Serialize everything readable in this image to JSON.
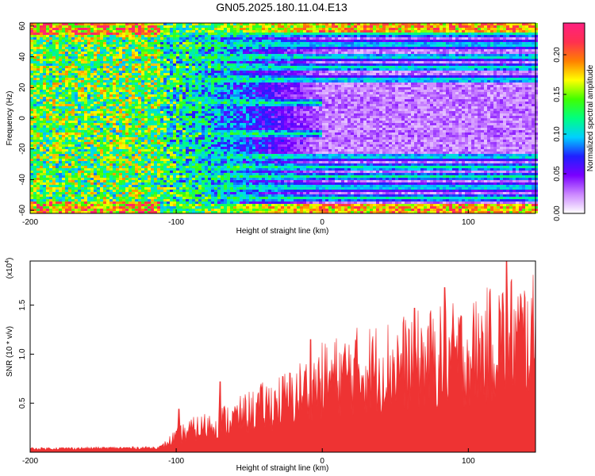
{
  "title": "GN05.2025.180.11.04.E13",
  "chart_data": [
    {
      "type": "heatmap",
      "xlabel": "Height of straight line (km)",
      "ylabel": "Frequency (Hz)",
      "xlim": [
        -200,
        146
      ],
      "ylim": [
        -62,
        62
      ],
      "x_ticks": [
        "-200",
        "-100",
        "0",
        "100"
      ],
      "x_tick_values": [
        -200,
        -100,
        0,
        100
      ],
      "y_ticks": [
        "60",
        "40",
        "20",
        "0",
        "-20",
        "-40",
        "-60"
      ],
      "y_tick_values": [
        60,
        40,
        20,
        0,
        -20,
        -40,
        -60
      ],
      "colorbar": {
        "label": "Normalized spectral amplitude",
        "range": [
          0,
          0.24
        ],
        "ticks": [
          "0.00",
          "0.05",
          "0.10",
          "0.15",
          "0.20"
        ],
        "tick_values": [
          0,
          0.05,
          0.1,
          0.15,
          0.2
        ],
        "colors": [
          "#ffffff",
          "#cc88ff",
          "#7a00ff",
          "#2020ff",
          "#00d0ff",
          "#00ff80",
          "#40ff00",
          "#ffff00",
          "#ff8000",
          "#ff3050",
          "#ff2080"
        ]
      },
      "description_regions": {
        "noise_until_x": -110,
        "horizontal_banding_from_x": 0
      }
    },
    {
      "type": "area",
      "xlabel": "Height of straight line (km)",
      "ylabel": "SNR (10 * v/v)",
      "y_scale_label": "(x10",
      "y_scale_exponent": "4",
      "xlim": [
        -200,
        146
      ],
      "ylim": [
        0,
        1.95
      ],
      "x_ticks": [
        "-200",
        "-100",
        "0",
        "100"
      ],
      "x_tick_values": [
        -200,
        -100,
        0,
        100
      ],
      "y_ticks": [
        "0.5",
        "1.0",
        "1.5"
      ],
      "y_tick_values": [
        0.5,
        1.0,
        1.5
      ],
      "color": "#ee3333",
      "envelope": {
        "x": [
          -200,
          -115,
          -110,
          -100,
          -90,
          -80,
          -60,
          -40,
          -20,
          -10,
          0,
          20,
          40,
          60,
          80,
          100,
          120,
          130,
          146
        ],
        "y": [
          0.04,
          0.05,
          0.06,
          0.2,
          0.28,
          0.33,
          0.43,
          0.58,
          0.7,
          0.82,
          0.9,
          1.02,
          1.08,
          1.15,
          1.2,
          1.25,
          1.4,
          1.48,
          1.45
        ]
      },
      "peaks": [
        {
          "x": -98,
          "y": 0.44
        },
        {
          "x": -70,
          "y": 0.72
        },
        {
          "x": -8,
          "y": 1.15
        },
        {
          "x": 63,
          "y": 1.47
        },
        {
          "x": 84,
          "y": 1.68
        },
        {
          "x": 121,
          "y": 1.6
        },
        {
          "x": 126,
          "y": 1.97
        }
      ]
    }
  ]
}
